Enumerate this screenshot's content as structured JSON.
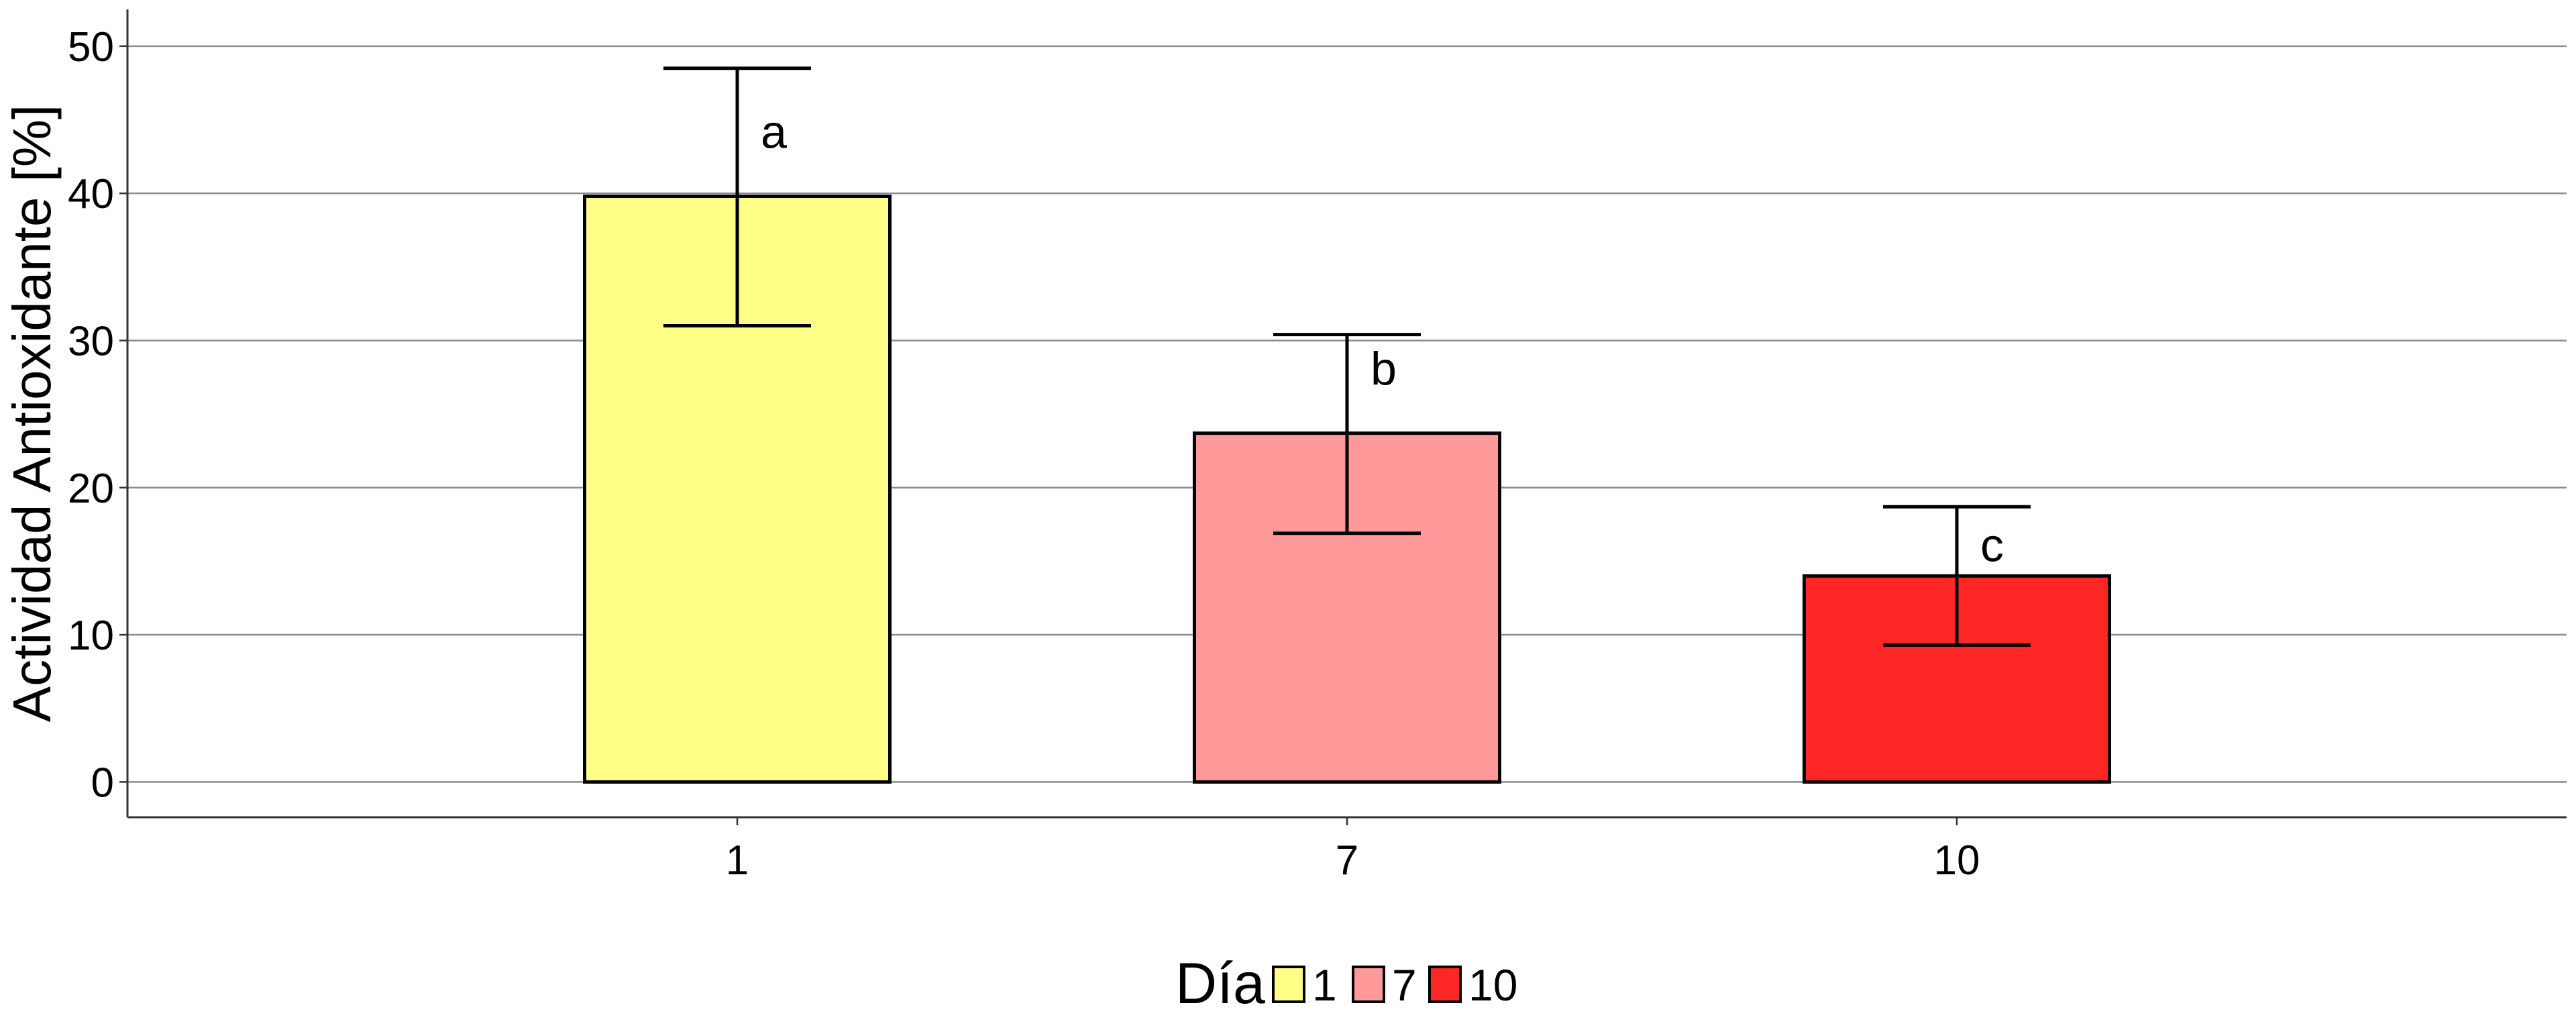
{
  "chart_data": {
    "type": "bar",
    "title": "",
    "xlabel": "",
    "ylabel": "Actividad Antioxidante [%]",
    "categories": [
      "1",
      "7",
      "10"
    ],
    "values": [
      39.8,
      23.7,
      14.0
    ],
    "error_low": [
      31.0,
      16.9,
      9.3
    ],
    "error_high": [
      48.5,
      30.4,
      18.7
    ],
    "annotations": [
      "a",
      "b",
      "c"
    ],
    "colors": [
      "#FFFF88",
      "#FF9999",
      "#FF2626"
    ],
    "ylim": [
      -2.4,
      52.5
    ],
    "yticks": [
      0,
      10,
      20,
      30,
      40,
      50
    ],
    "grid": "horizontal",
    "legend": {
      "title": "Día",
      "position": "bottom",
      "labels": [
        "1",
        "7",
        "10"
      ]
    }
  }
}
